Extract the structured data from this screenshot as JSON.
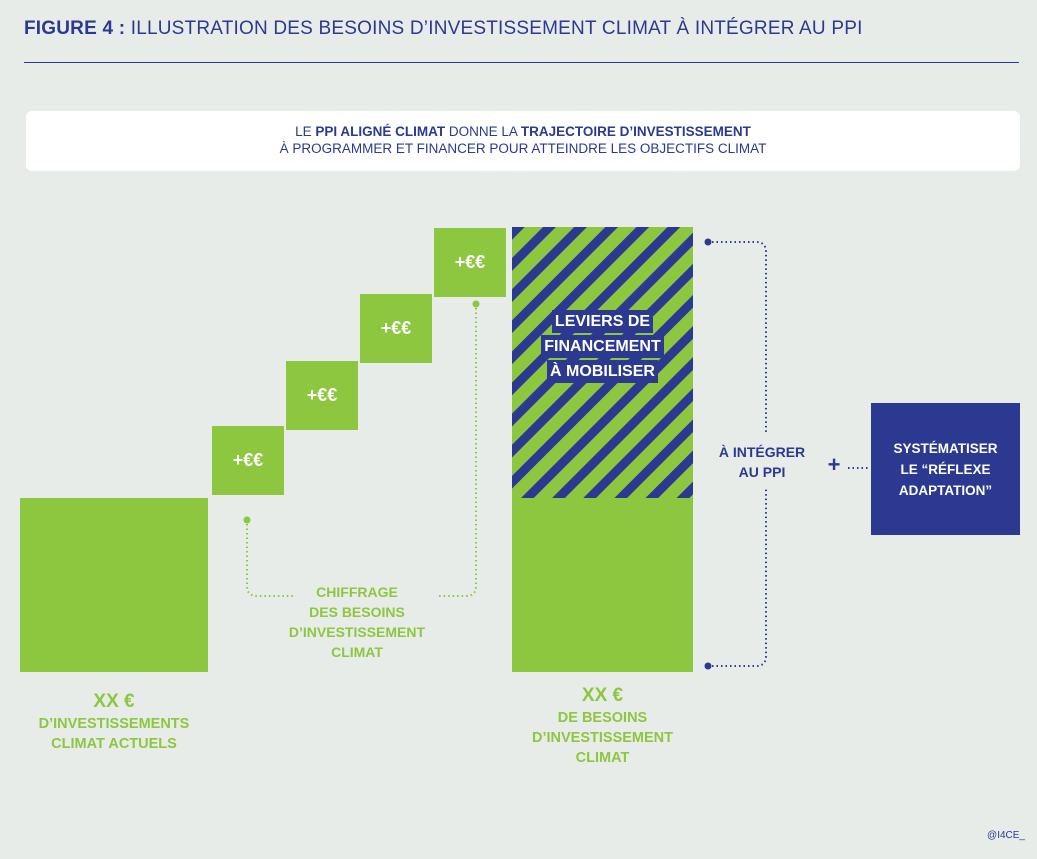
{
  "header": {
    "figure_label": "FIGURE 4 :",
    "title": "ILLUSTRATION DES BESOINS D’INVESTISSEMENT CLIMAT À INTÉGRER AU PPI"
  },
  "callout": {
    "line1_pre": "LE ",
    "line1_bold1": "PPI ALIGNÉ CLIMAT",
    "line1_mid": " DONNE LA ",
    "line1_bold2": "TRAJECTOIRE D’INVESTISSEMENT",
    "line2": "À PROGRAMMER ET FINANCER POUR ATTEINDRE LES OBJECTIFS CLIMAT"
  },
  "steps": [
    "+€€",
    "+€€",
    "+€€",
    "+€€"
  ],
  "left_block": {
    "amount": "XX €",
    "line1": "D’INVESTISSEMENTS",
    "line2": "CLIMAT ACTUELS"
  },
  "chiffrage": {
    "line1": "CHIFFRAGE",
    "line2": "DES BESOINS",
    "line3": "D’INVESTISSEMENT",
    "line4": "CLIMAT"
  },
  "leviers": {
    "line1": "LEVIERS DE",
    "line2": "FINANCEMENT",
    "line3": "À MOBILISER"
  },
  "right_block": {
    "amount": "XX €",
    "line1": "DE BESOINS",
    "line2": "D’INVESTISSEMENT",
    "line3": "CLIMAT"
  },
  "integrer": {
    "line1": "À INTÉGRER",
    "line2": "AU PPI"
  },
  "plus": "+",
  "adaptation": {
    "line1": "SYSTÉMATISER",
    "line2": "LE “RÉFLEXE",
    "line3": "ADAPTATION”"
  },
  "footer": "@I4CE_",
  "colors": {
    "green": "#8dc63f",
    "navy": "#2b3990",
    "background": "#e8ece9"
  }
}
